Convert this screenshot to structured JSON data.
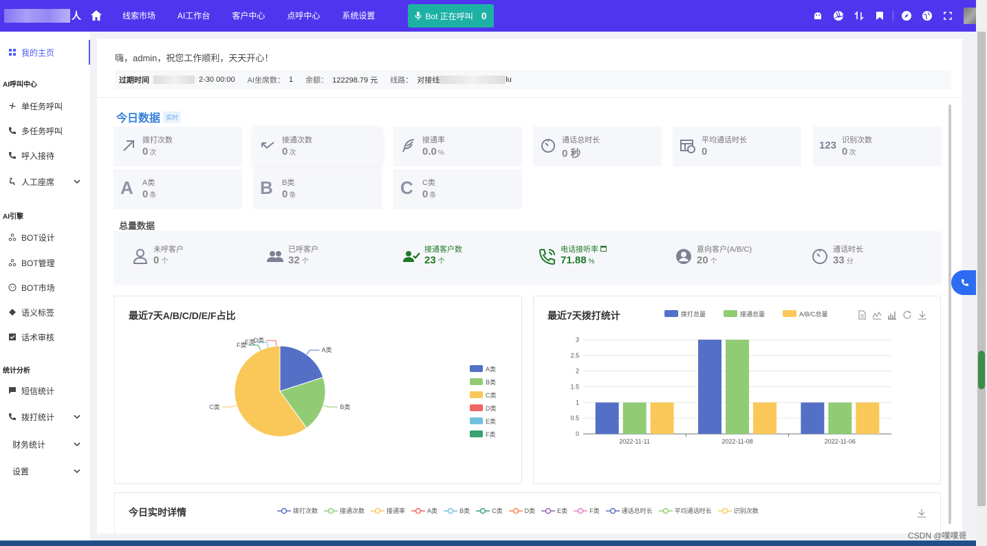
{
  "brand": {
    "suffix": "人"
  },
  "nav": [
    "线索市场",
    "AI工作台",
    "客户中心",
    "点呼中心",
    "系统设置"
  ],
  "bot_button": {
    "label": "Bot 正在呼叫",
    "count": "0"
  },
  "top_icons": [
    "android-icon",
    "aperture-icon",
    "transfer-icon",
    "bookmark-icon",
    "compass-icon",
    "globe-icon",
    "fullscreen-icon"
  ],
  "sidebar": {
    "home": "我的主页",
    "group_ai_call": "AI呼叫中心",
    "single_task": "单任务呼叫",
    "multi_task": "多任务呼叫",
    "inbound": "呼入接待",
    "agent": "人工座席",
    "group_engine": "AI引擎",
    "bot_design": "BOT设计",
    "bot_manage": "BOT管理",
    "bot_market": "BOT市场",
    "semantic": "语义标签",
    "script_review": "话术审核",
    "group_stats": "统计分析",
    "sms_stats": "短信统计",
    "call_stats": "拨打统计",
    "finance_stats": "财务统计",
    "settings": "设置"
  },
  "greeting": "嗨，admin，祝您工作顺利，天天开心！",
  "info": {
    "expire_label": "过期时间",
    "expire_value": "2-30 00:00",
    "seats_label": "AI坐席数：",
    "seats_value": "1",
    "balance_label": "余额：",
    "balance_value": "122298.79 元",
    "line_label": "线路：",
    "line_value": "对接线",
    "line_tail": "lu"
  },
  "today": {
    "title": "今日数据",
    "tag": "实时",
    "cards": [
      {
        "label": "拨打次数",
        "value": "0",
        "unit": "次"
      },
      {
        "label": "接通次数",
        "value": "0",
        "unit": "次"
      },
      {
        "label": "接通率",
        "value": "0.0",
        "unit": "%"
      },
      {
        "label": "通话总时长",
        "value": "0 秒",
        "unit": ""
      },
      {
        "label": "平均通话时长",
        "value": "0",
        "unit": ""
      },
      {
        "label": "识别次数",
        "value": "0",
        "unit": "次"
      },
      {
        "label": "A类",
        "value": "0",
        "unit": "条",
        "letter": "A"
      },
      {
        "label": "B类",
        "value": "0",
        "unit": "条",
        "letter": "B"
      },
      {
        "label": "C类",
        "value": "0",
        "unit": "条",
        "letter": "C"
      }
    ],
    "icon_123": "123"
  },
  "totals": {
    "title": "总量数据",
    "items": [
      {
        "label": "未呼客户",
        "value": "0",
        "unit": "个"
      },
      {
        "label": "已呼客户",
        "value": "32",
        "unit": "个"
      },
      {
        "label": "接通客户数",
        "value": "23",
        "unit": "个"
      },
      {
        "label": "电话接听率",
        "value": "71.88",
        "unit": "%"
      },
      {
        "label": "意向客户(A/B/C)",
        "value": "20",
        "unit": "个"
      },
      {
        "label": "通话时长",
        "value": "33",
        "unit": "分"
      }
    ]
  },
  "pie_panel": {
    "title": "最近7天A/B/C/D/E/F占比"
  },
  "bar_panel": {
    "title": "最近7天拨打统计"
  },
  "realtime_panel": {
    "title": "今日实时详情",
    "legend": [
      "拨打次数",
      "接通次数",
      "接通率",
      "A类",
      "B类",
      "C类",
      "D类",
      "E类",
      "F类",
      "通话总时长",
      "平均通话时长",
      "识别次数"
    ],
    "legend_colors": [
      "#5470c6",
      "#91cc75",
      "#fac858",
      "#ee6666",
      "#73c0de",
      "#3ba272",
      "#fc8452",
      "#9a60b4",
      "#ea7ccc",
      "#5470c6",
      "#91cc75",
      "#fac858"
    ]
  },
  "chart_data": [
    {
      "type": "pie",
      "title": "最近7天A/B/C/D/E/F占比",
      "categories": [
        "A类",
        "B类",
        "C类",
        "D类",
        "E类",
        "F类"
      ],
      "values": [
        4,
        4,
        12,
        0,
        0,
        0
      ],
      "colors": [
        "#5470c6",
        "#91cc75",
        "#fac858",
        "#ee6666",
        "#73c0de",
        "#3ba272"
      ],
      "legend": "right"
    },
    {
      "type": "bar",
      "title": "最近7天拨打统计",
      "categories": [
        "2022-11-11",
        "2022-11-08",
        "2022-11-06"
      ],
      "series": [
        {
          "name": "拨打总量",
          "values": [
            1,
            3,
            1
          ],
          "color": "#5470c6"
        },
        {
          "name": "接通总量",
          "values": [
            1,
            3,
            1
          ],
          "color": "#91cc75"
        },
        {
          "name": "A/B/C总量",
          "values": [
            1,
            1,
            1
          ],
          "color": "#fac858"
        }
      ],
      "yticks": [
        "0",
        "0.5",
        "1",
        "1.5",
        "2",
        "2.5",
        "3"
      ],
      "ylim": [
        0,
        3
      ],
      "legend": "top",
      "grid": true
    }
  ],
  "watermark": "CSDN @噗噗哥"
}
